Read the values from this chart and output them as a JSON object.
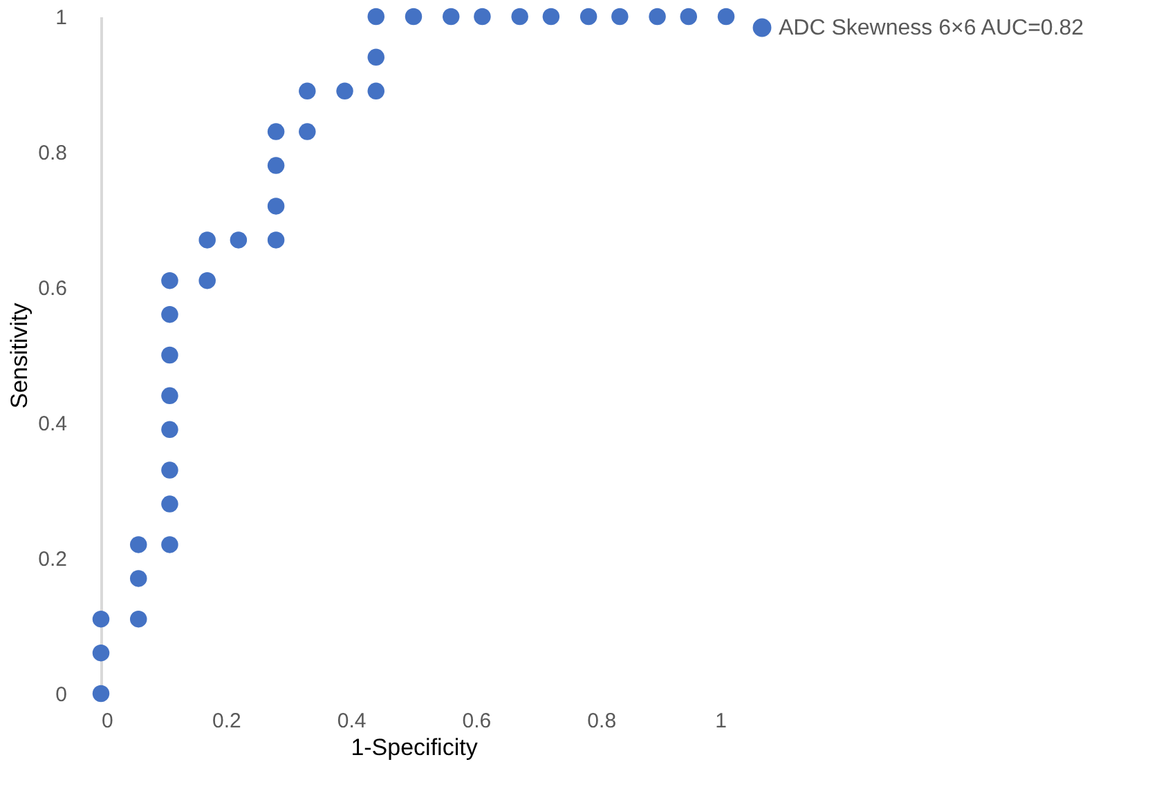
{
  "chart_data": {
    "type": "scatter",
    "xlabel": "1-Specificity",
    "ylabel": "Sensitivity",
    "x": [
      0,
      0,
      0,
      0.06,
      0.06,
      0.06,
      0.11,
      0.11,
      0.11,
      0.11,
      0.11,
      0.11,
      0.11,
      0.11,
      0.17,
      0.17,
      0.22,
      0.28,
      0.28,
      0.28,
      0.28,
      0.33,
      0.33,
      0.39,
      0.44,
      0.44,
      0.44,
      0.5,
      0.56,
      0.61,
      0.67,
      0.72,
      0.78,
      0.83,
      0.89,
      0.94,
      1
    ],
    "series": [
      {
        "name": "ADC Skewness 6×6 AUC=0.82",
        "color": "#4472c4",
        "values": [
          0,
          0.06,
          0.11,
          0.11,
          0.17,
          0.22,
          0.22,
          0.28,
          0.33,
          0.39,
          0.44,
          0.5,
          0.56,
          0.61,
          0.61,
          0.67,
          0.67,
          0.67,
          0.72,
          0.78,
          0.83,
          0.83,
          0.89,
          0.89,
          0.89,
          0.94,
          1,
          1,
          1,
          1,
          1,
          1,
          1,
          1,
          1,
          1,
          1
        ]
      }
    ],
    "xlim": [
      0,
      1
    ],
    "ylim": [
      0,
      1
    ],
    "xticks": [
      0,
      0.2,
      0.4,
      0.6,
      0.8,
      1
    ],
    "yticks": [
      0,
      0.2,
      0.4,
      0.6,
      0.8,
      1
    ],
    "grid": false,
    "legend": "right",
    "marker": "circle"
  }
}
